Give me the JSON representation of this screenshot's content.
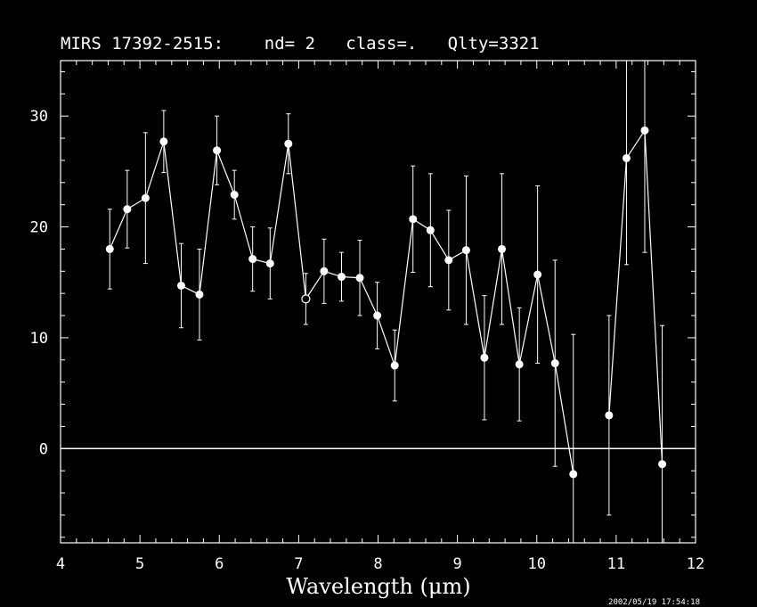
{
  "chart_data": {
    "type": "scatter",
    "title": "MIRS 17392-2515:    nd= 2   class=.   Qlty=3321",
    "xlabel": "Wavelength (μm)",
    "ylabel": "",
    "xlim": [
      4,
      12
    ],
    "ylim": [
      -8.5,
      35
    ],
    "xticks": [
      4,
      5,
      6,
      7,
      8,
      9,
      10,
      11,
      12
    ],
    "yticks": [
      0,
      10,
      20,
      30
    ],
    "grid": false,
    "zero_line": true,
    "colors": {
      "background": "#000000",
      "foreground": "#ffffff"
    },
    "points": [
      {
        "x": 4.62,
        "y": 18.0,
        "err": 3.6
      },
      {
        "x": 4.84,
        "y": 21.6,
        "err": 3.5
      },
      {
        "x": 5.07,
        "y": 22.6,
        "err": 5.9
      },
      {
        "x": 5.3,
        "y": 27.7,
        "err": 2.8
      },
      {
        "x": 5.52,
        "y": 14.7,
        "err": 3.8
      },
      {
        "x": 5.75,
        "y": 13.9,
        "err": 4.1
      },
      {
        "x": 5.97,
        "y": 26.9,
        "err": 3.1
      },
      {
        "x": 6.19,
        "y": 22.9,
        "err": 2.2
      },
      {
        "x": 6.42,
        "y": 17.1,
        "err": 2.9
      },
      {
        "x": 6.64,
        "y": 16.7,
        "err": 3.2
      },
      {
        "x": 6.87,
        "y": 27.5,
        "err": 2.7
      },
      {
        "x": 7.09,
        "y": 13.5,
        "err": 2.3,
        "open": true
      },
      {
        "x": 7.32,
        "y": 16.0,
        "err": 2.9
      },
      {
        "x": 7.54,
        "y": 15.5,
        "err": 2.2
      },
      {
        "x": 7.77,
        "y": 15.4,
        "err": 3.4
      },
      {
        "x": 7.99,
        "y": 12.0,
        "err": 3.0
      },
      {
        "x": 8.21,
        "y": 7.5,
        "err": 3.2
      },
      {
        "x": 8.44,
        "y": 20.7,
        "err": 4.8
      },
      {
        "x": 8.66,
        "y": 19.7,
        "err": 5.1
      },
      {
        "x": 8.89,
        "y": 17.0,
        "err": 4.5
      },
      {
        "x": 9.11,
        "y": 17.9,
        "err": 6.7
      },
      {
        "x": 9.34,
        "y": 8.2,
        "err": 5.6
      },
      {
        "x": 9.56,
        "y": 18.0,
        "err": 6.8
      },
      {
        "x": 9.78,
        "y": 7.6,
        "err": 5.1
      },
      {
        "x": 10.01,
        "y": 15.7,
        "err": 8.0
      },
      {
        "x": 10.23,
        "y": 7.7,
        "err": 9.3
      },
      {
        "x": 10.46,
        "y": -2.3,
        "err": 12.6
      },
      {
        "x": 10.91,
        "y": 3.0,
        "err": 9.0
      },
      {
        "x": 11.13,
        "y": 26.2,
        "err": 9.6
      },
      {
        "x": 11.36,
        "y": 28.7,
        "err": 11.0
      },
      {
        "x": 11.58,
        "y": -1.4,
        "err": 12.5
      }
    ],
    "line_break_after_x": 10.46
  },
  "footer": {
    "timestamp": "2002/05/19 17:54:18"
  }
}
